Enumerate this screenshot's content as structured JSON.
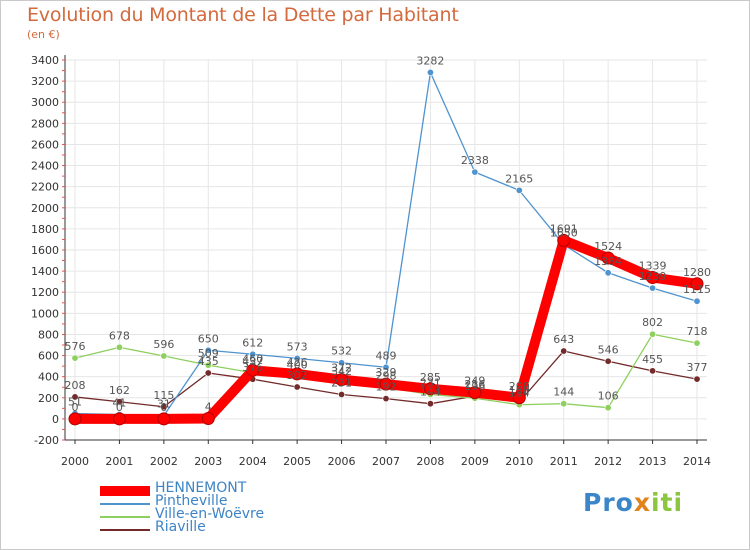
{
  "header": {
    "title": "Evolution du Montant de la Dette par Habitant",
    "unit": "(en €)"
  },
  "colors": {
    "title": "#d36a3e",
    "grid": "#e6e6e6",
    "axis_text": "#333333",
    "label_text": "#555555",
    "legend_text": "#3d84c6",
    "tick_marks": "#e35555"
  },
  "chart_data": {
    "type": "line",
    "title": "Evolution du Montant de la Dette par Habitant",
    "ylabel": "(en €)",
    "xlabel": "",
    "x": [
      2000,
      2001,
      2002,
      2003,
      2004,
      2005,
      2006,
      2007,
      2008,
      2009,
      2010,
      2011,
      2012,
      2013,
      2014
    ],
    "ylim": [
      -200,
      3400
    ],
    "yticks": [
      -200,
      0,
      200,
      400,
      600,
      800,
      1000,
      1200,
      1400,
      1600,
      1800,
      2000,
      2200,
      2400,
      2600,
      2800,
      3000,
      3200,
      3400
    ],
    "grid": true,
    "legend_position": "bottom-left",
    "series": [
      {
        "name": "HENNEMONT",
        "color": "#ff0000",
        "values": [
          0,
          0,
          0,
          4,
          460,
          426,
          372,
          329,
          285,
          249,
          200,
          1691,
          1524,
          1339,
          1280
        ],
        "labels": [
          "0",
          "0",
          "0",
          "4",
          "460",
          "426",
          "372",
          "329",
          "285",
          "249",
          "200",
          "1691",
          "1524",
          "1339",
          "1280"
        ]
      },
      {
        "name": "Pintheville",
        "color": "#4f93cf",
        "values": [
          51,
          41,
          31,
          650,
          612,
          573,
          532,
          489,
          3282,
          2338,
          2165,
          1650,
          1384,
          1239,
          1115
        ],
        "labels": [
          "51",
          "41",
          "31",
          "650",
          "612",
          "573",
          "532",
          "489",
          "3282",
          "2338",
          "2165",
          "1650",
          "1384",
          "1239",
          "1115"
        ]
      },
      {
        "name": "Ville-en-Woëvre",
        "color": "#8ed05f",
        "values": [
          576,
          678,
          596,
          509,
          437,
          400,
          342,
          298,
          231,
          196,
          134,
          144,
          106,
          802,
          718
        ],
        "labels": [
          "576",
          "678",
          "596",
          "509",
          "437",
          "400",
          "342",
          "298",
          "231",
          "196",
          "134",
          "144",
          "106",
          "802",
          "718"
        ]
      },
      {
        "name": "Riaville",
        "color": "#722a2a",
        "values": [
          208,
          162,
          115,
          435,
          376,
          302,
          231,
          192,
          144,
          216,
          160,
          643,
          546,
          455,
          377
        ],
        "labels": [
          "208",
          "162",
          "115",
          "435",
          "376",
          "302",
          "231",
          "192",
          "144",
          "216",
          "160",
          "643",
          "546",
          "455",
          "377"
        ]
      }
    ]
  },
  "legend": {
    "items": [
      {
        "label": "HENNEMONT",
        "color": "#ff0000"
      },
      {
        "label": "Pintheville",
        "color": "#4f93cf"
      },
      {
        "label": "Ville-en-Woëvre",
        "color": "#8ed05f"
      },
      {
        "label": "Riaville",
        "color": "#722a2a"
      }
    ]
  },
  "logo": {
    "part1": "Pro",
    "part2": "x",
    "part3": "iti"
  }
}
